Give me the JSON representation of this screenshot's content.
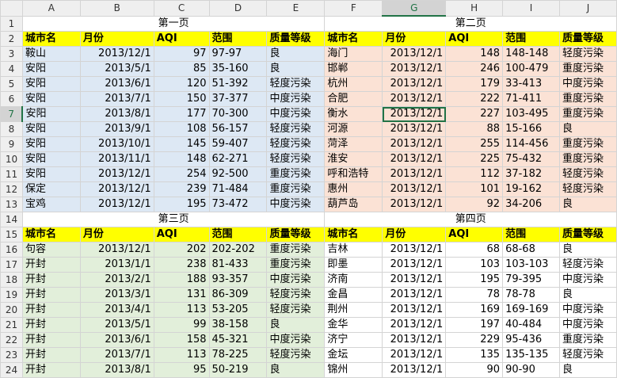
{
  "columns": [
    "A",
    "B",
    "C",
    "D",
    "E",
    "F",
    "G",
    "H",
    "I",
    "J"
  ],
  "selected_column": "G",
  "selected_row": "7",
  "rows": [
    {
      "num": "1",
      "type": "title",
      "cells": [
        "第一页",
        "第二页"
      ]
    },
    {
      "num": "2",
      "type": "header",
      "cells": [
        "城市名",
        "月份",
        "AQI",
        "范围",
        "质量等级",
        "城市名",
        "月份",
        "AQI",
        "范围",
        "质量等级"
      ]
    },
    {
      "num": "3",
      "cells": [
        "鞍山",
        "2013/12/1",
        "97",
        "97-97",
        "良",
        "海门",
        "2013/12/1",
        "148",
        "148-148",
        "轻度污染"
      ]
    },
    {
      "num": "4",
      "cells": [
        "安阳",
        "2013/5/1",
        "85",
        "35-160",
        "良",
        "邯郸",
        "2013/12/1",
        "246",
        "100-479",
        "重度污染"
      ]
    },
    {
      "num": "5",
      "cells": [
        "安阳",
        "2013/6/1",
        "120",
        "51-392",
        "轻度污染",
        "杭州",
        "2013/12/1",
        "179",
        "33-413",
        "中度污染"
      ]
    },
    {
      "num": "6",
      "cells": [
        "安阳",
        "2013/7/1",
        "150",
        "37-377",
        "中度污染",
        "合肥",
        "2013/12/1",
        "222",
        "71-411",
        "重度污染"
      ]
    },
    {
      "num": "7",
      "cells": [
        "安阳",
        "2013/8/1",
        "177",
        "70-300",
        "中度污染",
        "衡水",
        "2013/12/1",
        "227",
        "103-495",
        "重度污染"
      ]
    },
    {
      "num": "8",
      "cells": [
        "安阳",
        "2013/9/1",
        "108",
        "56-157",
        "轻度污染",
        "河源",
        "2013/12/1",
        "88",
        "15-166",
        "良"
      ]
    },
    {
      "num": "9",
      "cells": [
        "安阳",
        "2013/10/1",
        "145",
        "59-407",
        "轻度污染",
        "菏泽",
        "2013/12/1",
        "255",
        "114-456",
        "重度污染"
      ]
    },
    {
      "num": "10",
      "cells": [
        "安阳",
        "2013/11/1",
        "148",
        "62-271",
        "轻度污染",
        "淮安",
        "2013/12/1",
        "225",
        "75-432",
        "重度污染"
      ]
    },
    {
      "num": "11",
      "cells": [
        "安阳",
        "2013/12/1",
        "254",
        "92-500",
        "重度污染",
        "呼和浩特",
        "2013/12/1",
        "112",
        "37-182",
        "轻度污染"
      ]
    },
    {
      "num": "12",
      "cells": [
        "保定",
        "2013/12/1",
        "239",
        "71-484",
        "重度污染",
        "惠州",
        "2013/12/1",
        "101",
        "19-162",
        "轻度污染"
      ]
    },
    {
      "num": "13",
      "cells": [
        "宝鸡",
        "2013/12/1",
        "195",
        "73-472",
        "中度污染",
        "葫芦岛",
        "2013/12/1",
        "92",
        "34-206",
        "良"
      ]
    },
    {
      "num": "14",
      "type": "title",
      "cells": [
        "第三页",
        "第四页"
      ]
    },
    {
      "num": "15",
      "type": "header",
      "cells": [
        "城市名",
        "月份",
        "AQI",
        "范围",
        "质量等级",
        "城市名",
        "月份",
        "AQI",
        "范围",
        "质量等级"
      ]
    },
    {
      "num": "16",
      "cells": [
        "句容",
        "2013/12/1",
        "202",
        "202-202",
        "重度污染",
        "吉林",
        "2013/12/1",
        "68",
        "68-68",
        "良"
      ]
    },
    {
      "num": "17",
      "cells": [
        "开封",
        "2013/1/1",
        "238",
        "81-433",
        "重度污染",
        "即墨",
        "2013/12/1",
        "103",
        "103-103",
        "轻度污染"
      ]
    },
    {
      "num": "18",
      "cells": [
        "开封",
        "2013/2/1",
        "188",
        "93-357",
        "中度污染",
        "济南",
        "2013/12/1",
        "195",
        "79-395",
        "中度污染"
      ]
    },
    {
      "num": "19",
      "cells": [
        "开封",
        "2013/3/1",
        "131",
        "86-309",
        "轻度污染",
        "金昌",
        "2013/12/1",
        "78",
        "78-78",
        "良"
      ]
    },
    {
      "num": "20",
      "cells": [
        "开封",
        "2013/4/1",
        "113",
        "53-205",
        "轻度污染",
        "荆州",
        "2013/12/1",
        "169",
        "169-169",
        "中度污染"
      ]
    },
    {
      "num": "21",
      "cells": [
        "开封",
        "2013/5/1",
        "99",
        "38-158",
        "良",
        "金华",
        "2013/12/1",
        "197",
        "40-484",
        "中度污染"
      ]
    },
    {
      "num": "22",
      "cells": [
        "开封",
        "2013/6/1",
        "158",
        "45-321",
        "中度污染",
        "济宁",
        "2013/12/1",
        "229",
        "95-436",
        "重度污染"
      ]
    },
    {
      "num": "23",
      "cells": [
        "开封",
        "2013/7/1",
        "113",
        "78-225",
        "轻度污染",
        "金坛",
        "2013/12/1",
        "135",
        "135-135",
        "轻度污染"
      ]
    },
    {
      "num": "24",
      "cells": [
        "开封",
        "2013/8/1",
        "95",
        "50-219",
        "良",
        "锦州",
        "2013/12/1",
        "90",
        "90-90",
        "良"
      ]
    }
  ]
}
